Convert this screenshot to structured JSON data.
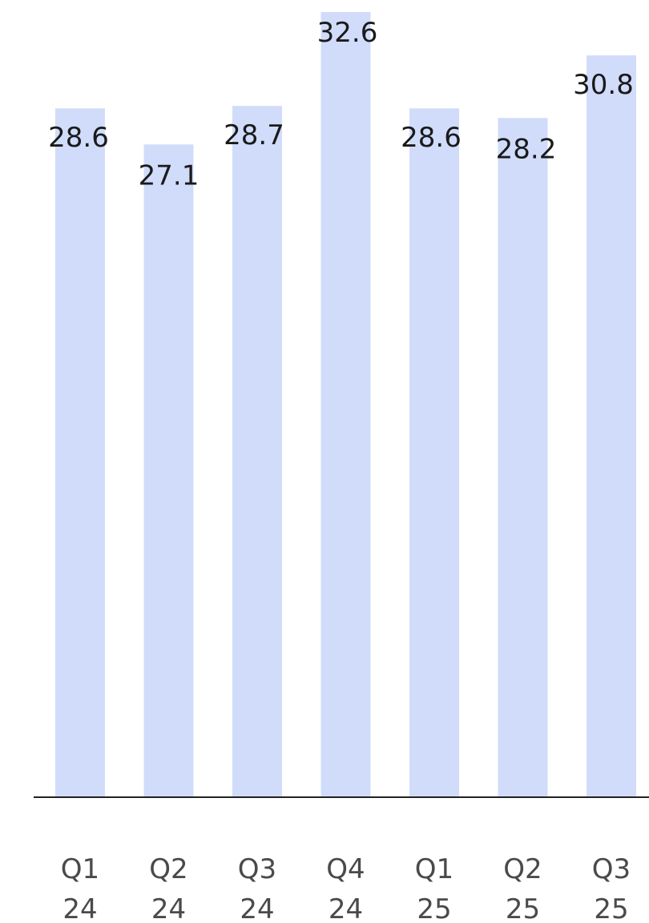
{
  "chart_data": {
    "type": "bar",
    "categories": [
      {
        "quarter": "Q1",
        "year": "24"
      },
      {
        "quarter": "Q2",
        "year": "24"
      },
      {
        "quarter": "Q3",
        "year": "24"
      },
      {
        "quarter": "Q4",
        "year": "24"
      },
      {
        "quarter": "Q1",
        "year": "25"
      },
      {
        "quarter": "Q2",
        "year": "25"
      },
      {
        "quarter": "Q3",
        "year": "25"
      }
    ],
    "values": [
      28.6,
      27.1,
      28.7,
      32.6,
      28.6,
      28.2,
      30.8
    ],
    "value_labels": [
      "28.6",
      "27.1",
      "28.7",
      "32.6",
      "28.6",
      "28.2",
      "30.8"
    ],
    "ylim": [
      0,
      32.6
    ],
    "grid": false,
    "bar_color": "#d0dcfa",
    "label_color": "#1a1a1a",
    "tick_color": "#4a4a4a",
    "axis_color": "#222222"
  }
}
